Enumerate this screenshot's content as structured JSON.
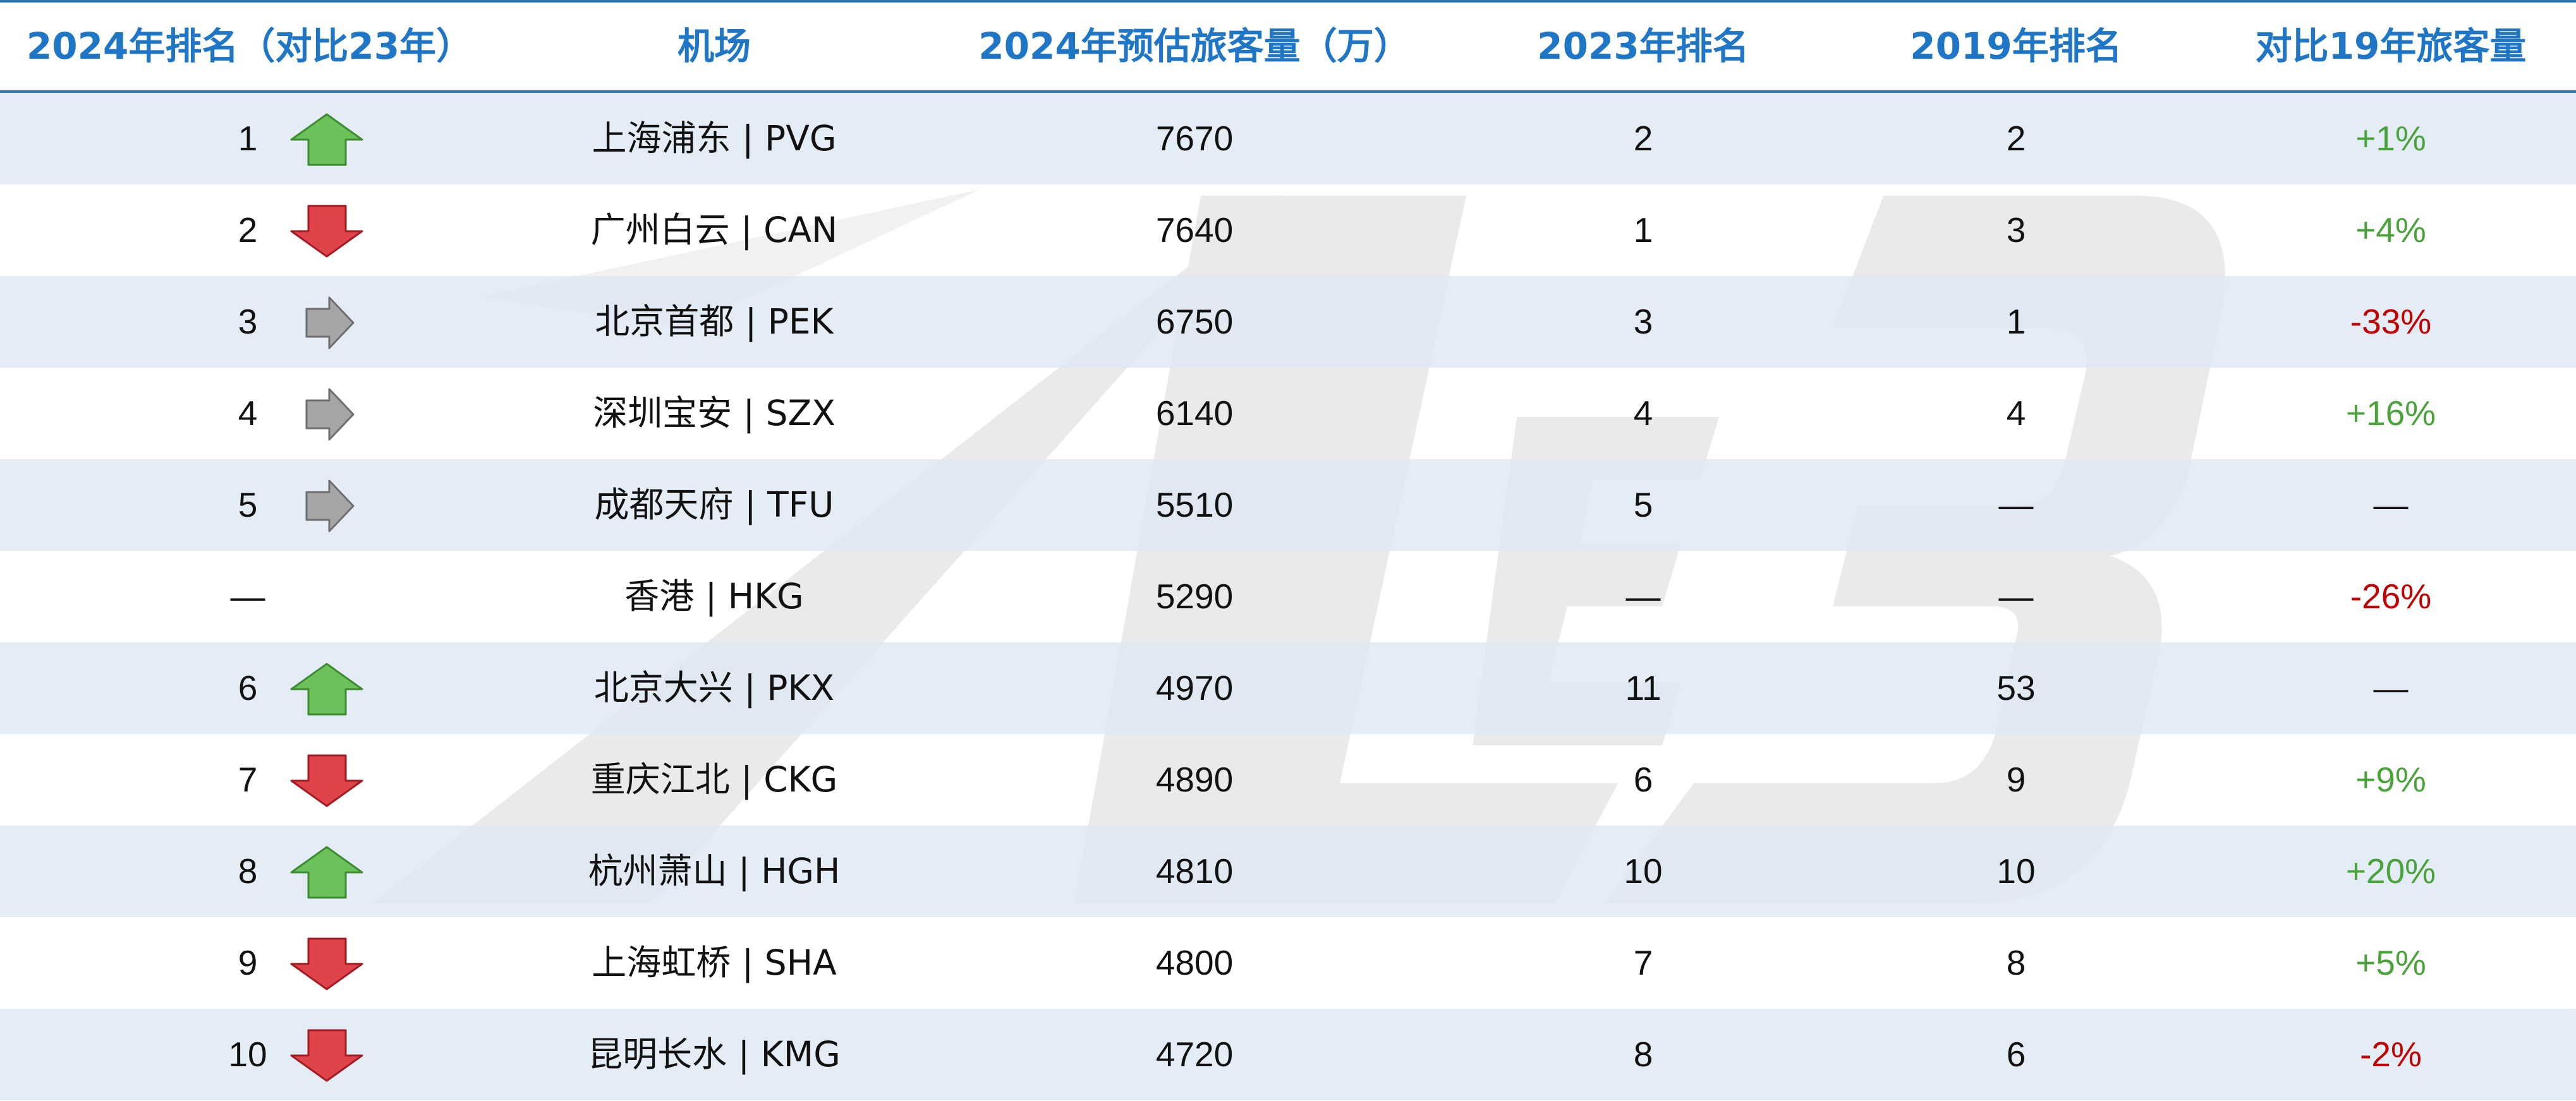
{
  "colors": {
    "header_text": "#1f75c6",
    "header_rule": "#2e75b6",
    "row_shade": "#dde8f3",
    "up_arrow": "#6cc25a",
    "down_arrow": "#e0444b",
    "same_arrow": "#a6a6a6",
    "positive": "#4aa33a",
    "negative": "#c00000"
  },
  "chart_data": {
    "type": "table",
    "columns": [
      "2024年排名（对比23年）",
      "机场",
      "2024年预估旅客量（万）",
      "2023年排名",
      "2019年排名",
      "对比19年旅客量"
    ],
    "rows": [
      {
        "rank": "1",
        "trend": "up",
        "airport": "上海浦东 | PVG",
        "pax": "7670",
        "rank_2023": "2",
        "rank_2019": "2",
        "vs_2019": "+1%",
        "vs_sign": "pos"
      },
      {
        "rank": "2",
        "trend": "down",
        "airport": "广州白云 | CAN",
        "pax": "7640",
        "rank_2023": "1",
        "rank_2019": "3",
        "vs_2019": "+4%",
        "vs_sign": "pos"
      },
      {
        "rank": "3",
        "trend": "same",
        "airport": "北京首都 | PEK",
        "pax": "6750",
        "rank_2023": "3",
        "rank_2019": "1",
        "vs_2019": "-33%",
        "vs_sign": "neg"
      },
      {
        "rank": "4",
        "trend": "same",
        "airport": "深圳宝安 | SZX",
        "pax": "6140",
        "rank_2023": "4",
        "rank_2019": "4",
        "vs_2019": "+16%",
        "vs_sign": "pos"
      },
      {
        "rank": "5",
        "trend": "same",
        "airport": "成都天府 | TFU",
        "pax": "5510",
        "rank_2023": "5",
        "rank_2019": "—",
        "vs_2019": "—",
        "vs_sign": "neu"
      },
      {
        "rank": "—",
        "trend": "none",
        "airport": "香港 | HKG",
        "pax": "5290",
        "rank_2023": "—",
        "rank_2019": "—",
        "vs_2019": "-26%",
        "vs_sign": "neg"
      },
      {
        "rank": "6",
        "trend": "up",
        "airport": "北京大兴 | PKX",
        "pax": "4970",
        "rank_2023": "11",
        "rank_2019": "53",
        "vs_2019": "—",
        "vs_sign": "neu"
      },
      {
        "rank": "7",
        "trend": "down",
        "airport": "重庆江北 | CKG",
        "pax": "4890",
        "rank_2023": "6",
        "rank_2019": "9",
        "vs_2019": "+9%",
        "vs_sign": "pos"
      },
      {
        "rank": "8",
        "trend": "up",
        "airport": "杭州萧山 | HGH",
        "pax": "4810",
        "rank_2023": "10",
        "rank_2019": "10",
        "vs_2019": "+20%",
        "vs_sign": "pos"
      },
      {
        "rank": "9",
        "trend": "down",
        "airport": "上海虹桥 | SHA",
        "pax": "4800",
        "rank_2023": "7",
        "rank_2019": "8",
        "vs_2019": "+5%",
        "vs_sign": "pos"
      },
      {
        "rank": "10",
        "trend": "down",
        "airport": "昆明长水 | KMG",
        "pax": "4720",
        "rank_2023": "8",
        "rank_2019": "6",
        "vs_2019": "-2%",
        "vs_sign": "neg"
      }
    ]
  }
}
